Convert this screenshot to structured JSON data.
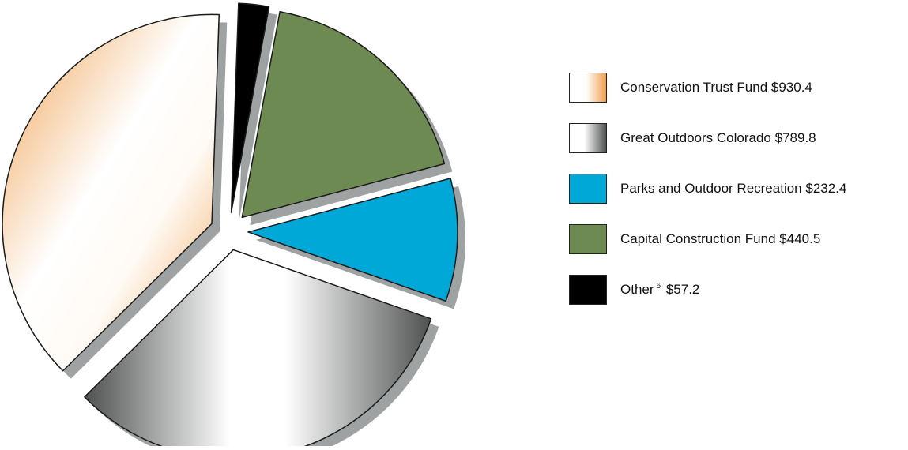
{
  "chart_data": {
    "type": "pie",
    "title": "",
    "slices": [
      {
        "name": "Conservation Trust Fund",
        "value": 930.4,
        "value_label": "$930.4",
        "fill": "gradient-orange",
        "colors": [
          "#ef9f4d",
          "#ffffff"
        ],
        "exploded": true
      },
      {
        "name": "Great Outdoors Colorado",
        "value": 789.8,
        "value_label": "$789.8",
        "fill": "gradient-silver",
        "colors": [
          "#4f5151",
          "#ffffff"
        ],
        "exploded": true
      },
      {
        "name": "Parks and Outdoor Recreation",
        "value": 232.4,
        "value_label": "$232.4",
        "fill": "solid",
        "colors": [
          "#00a8d8"
        ],
        "exploded": true
      },
      {
        "name": "Capital Construction Fund",
        "value": 440.5,
        "value_label": "$440.5",
        "fill": "solid",
        "colors": [
          "#6d8a52"
        ],
        "exploded": true
      },
      {
        "name": "Other",
        "note_mark": "6",
        "value": 57.2,
        "value_label": "$57.2",
        "fill": "solid",
        "colors": [
          "#000000"
        ],
        "exploded": true
      }
    ],
    "legend_position": "right",
    "shadow_color": "#9fa2a2",
    "outline_color": "#1a1a1a"
  }
}
